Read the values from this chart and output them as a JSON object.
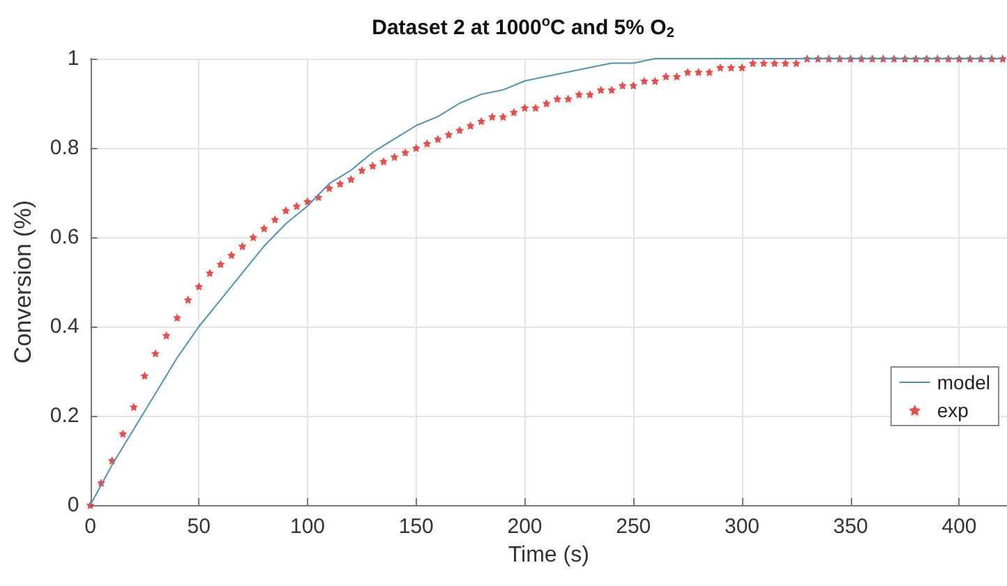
{
  "chart_data": {
    "type": "line",
    "title": "Dataset 2 at 1000$^{o}$C and 5% O$_{2}$",
    "xlabel": "Time (s)",
    "ylabel": "Conversion (%)",
    "xlim": [
      0,
      422
    ],
    "xticks": [
      0,
      50,
      100,
      150,
      200,
      250,
      300,
      350,
      400
    ],
    "ylim": [
      0,
      1
    ],
    "yticks": [
      0,
      0.2,
      0.4,
      0.6,
      0.8,
      1
    ],
    "grid": true,
    "legend": "right",
    "series": [
      {
        "name": "model",
        "color": "#4d93b5",
        "marker": "none",
        "x": [
          0,
          10,
          20,
          30,
          40,
          50,
          60,
          70,
          80,
          90,
          100,
          110,
          120,
          130,
          140,
          150,
          160,
          170,
          180,
          190,
          200,
          210,
          220,
          230,
          240,
          250,
          260,
          270,
          300,
          350,
          420
        ],
        "values": [
          0,
          0.09,
          0.17,
          0.25,
          0.33,
          0.4,
          0.46,
          0.52,
          0.58,
          0.63,
          0.67,
          0.72,
          0.75,
          0.79,
          0.82,
          0.85,
          0.87,
          0.9,
          0.92,
          0.93,
          0.95,
          0.96,
          0.97,
          0.98,
          0.99,
          0.99,
          1,
          1,
          1,
          1,
          1
        ]
      },
      {
        "name": "exp",
        "type": "scatter",
        "color": "#e02020",
        "marker": "star",
        "x": [
          0,
          5,
          10,
          15,
          20,
          25,
          30,
          35,
          40,
          45,
          50,
          55,
          60,
          65,
          70,
          75,
          80,
          85,
          90,
          95,
          100,
          105,
          110,
          115,
          120,
          125,
          130,
          135,
          140,
          145,
          150,
          155,
          160,
          165,
          170,
          175,
          180,
          185,
          190,
          195,
          200,
          205,
          210,
          215,
          220,
          225,
          230,
          235,
          240,
          245,
          250,
          255,
          260,
          265,
          270,
          275,
          280,
          285,
          290,
          295,
          300,
          305,
          310,
          315,
          320,
          325,
          330,
          335,
          340,
          345,
          350,
          355,
          360,
          365,
          370,
          375,
          380,
          385,
          390,
          395,
          400,
          405,
          410,
          415,
          420
        ],
        "values": [
          0,
          0.05,
          0.1,
          0.16,
          0.22,
          0.29,
          0.34,
          0.38,
          0.42,
          0.46,
          0.49,
          0.52,
          0.54,
          0.56,
          0.58,
          0.6,
          0.62,
          0.64,
          0.66,
          0.67,
          0.68,
          0.69,
          0.71,
          0.72,
          0.73,
          0.75,
          0.76,
          0.77,
          0.78,
          0.79,
          0.8,
          0.81,
          0.82,
          0.83,
          0.84,
          0.85,
          0.86,
          0.87,
          0.87,
          0.88,
          0.89,
          0.89,
          0.9,
          0.91,
          0.91,
          0.92,
          0.92,
          0.93,
          0.93,
          0.94,
          0.94,
          0.95,
          0.95,
          0.96,
          0.96,
          0.97,
          0.97,
          0.97,
          0.98,
          0.98,
          0.98,
          0.99,
          0.99,
          0.99,
          0.99,
          0.99,
          1,
          1,
          1,
          1,
          1,
          1,
          1,
          1,
          1,
          1,
          1,
          1,
          1,
          1,
          1,
          1,
          1,
          1,
          1
        ]
      }
    ]
  }
}
